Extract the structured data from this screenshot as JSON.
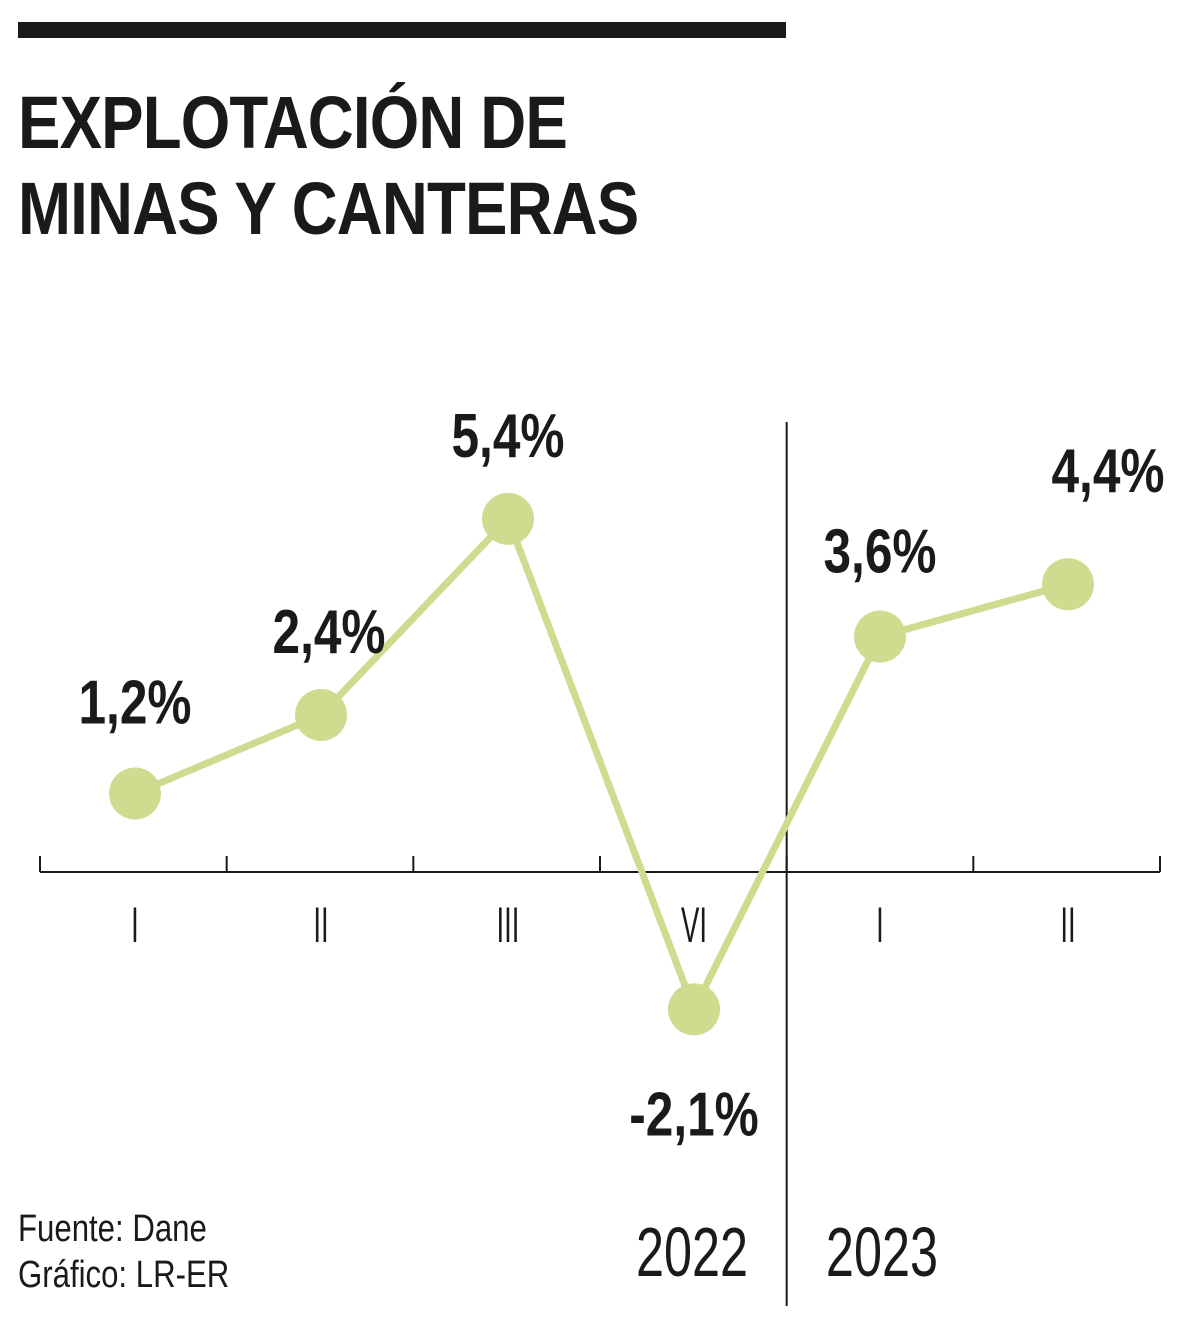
{
  "header": {
    "title_line1": "EXPLOTACIÓN DE",
    "title_line2": "MINAS Y CANTERAS"
  },
  "footer": {
    "source": "Fuente: Dane",
    "credit": "Gráfico: LR-ER"
  },
  "colors": {
    "line": "#cddc8f",
    "axis": "#1a1a1a",
    "text": "#1a1a1a"
  },
  "chart_data": {
    "type": "line",
    "title": "EXPLOTACIÓN DE MINAS Y CANTERAS",
    "categories": [
      "I",
      "II",
      "III",
      "VI",
      "I",
      "II"
    ],
    "years": [
      {
        "label": "2022",
        "start_index": 0,
        "end_index": 3
      },
      {
        "label": "2023",
        "start_index": 4,
        "end_index": 5
      }
    ],
    "series": [
      {
        "values": [
          1.2,
          2.4,
          5.4,
          -2.1,
          3.6,
          4.4
        ]
      }
    ],
    "data_labels": [
      "1,2%",
      "2,4%",
      "5,4%",
      "-2,1%",
      "3,6%",
      "4,4%"
    ],
    "unit": "%",
    "grid": false,
    "legend": "none"
  }
}
